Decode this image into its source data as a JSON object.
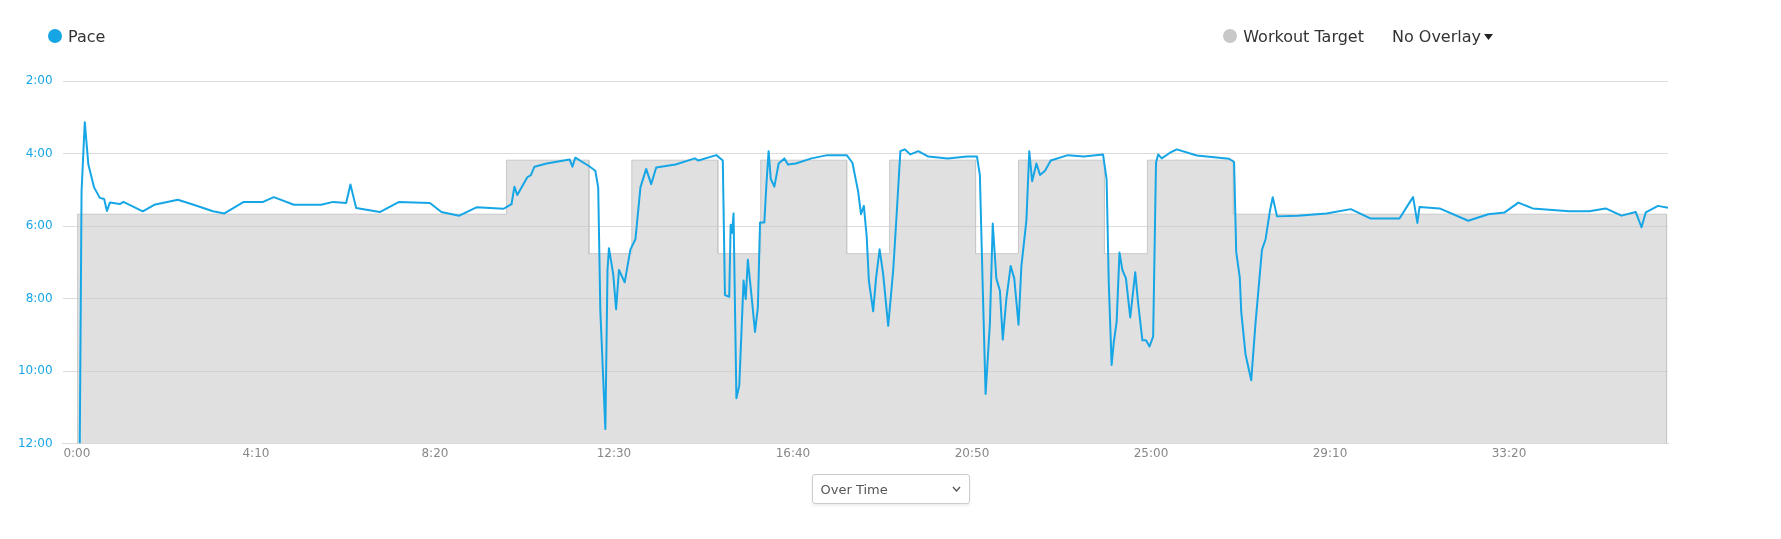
{
  "chart_data": {
    "type": "line",
    "legend": "top",
    "grid": "y",
    "marker": "none",
    "line_style": "solid",
    "xlim": [
      -20,
      2222
    ],
    "ylim": [
      12,
      2
    ],
    "xticks": [
      {
        "value": 0,
        "label": "0:00"
      },
      {
        "value": 250,
        "label": "4:10"
      },
      {
        "value": 500,
        "label": "8:20"
      },
      {
        "value": 750,
        "label": "12:30"
      },
      {
        "value": 1000,
        "label": "16:40"
      },
      {
        "value": 1250,
        "label": "20:50"
      },
      {
        "value": 1500,
        "label": "25:00"
      },
      {
        "value": 1750,
        "label": "29:10"
      },
      {
        "value": 2000,
        "label": "33:20"
      }
    ],
    "yticks": [
      {
        "value": 2,
        "label": "2:00"
      },
      {
        "value": 4,
        "label": "4:00"
      },
      {
        "value": 6,
        "label": "6:00"
      },
      {
        "value": 8,
        "label": "8:00"
      },
      {
        "value": 10,
        "label": "10:00"
      },
      {
        "value": 12,
        "label": "12:00"
      }
    ],
    "annotations": [
      "No Overlay",
      "Over Time"
    ],
    "series": [
      {
        "name": "Pace",
        "color": "#16a6e6",
        "x": [
          4,
          6.5,
          11,
          16,
          24,
          32,
          38,
          42,
          46,
          60,
          65,
          92,
          108,
          141,
          163,
          190,
          206,
          233,
          260,
          275,
          303,
          341,
          358,
          376,
          382,
          390,
          423,
          450,
          493,
          509,
          534,
          558,
          596,
          607,
          611,
          615,
          629,
          634,
          639,
          656,
          688,
          692,
          696,
          715,
          724,
          728,
          731,
          738,
          741,
          743,
          749,
          753,
          757,
          765,
          773,
          780,
          787,
          795,
          802,
          809,
          836,
          863,
          868,
          893,
          902,
          905,
          911,
          913,
          915,
          917,
          921,
          925,
          931,
          934,
          937,
          942,
          947,
          951,
          954,
          960,
          963,
          966,
          969,
          974,
          980,
          988,
          993,
          1004,
          1026,
          1048,
          1075,
          1083,
          1091,
          1095,
          1099,
          1103,
          1106,
          1112,
          1116,
          1121,
          1126,
          1133,
          1140,
          1145,
          1150,
          1156,
          1164,
          1175,
          1189,
          1216,
          1243,
          1257,
          1261,
          1265,
          1269,
          1275,
          1279,
          1284,
          1289,
          1293,
          1298,
          1304,
          1309,
          1315,
          1319,
          1326,
          1330,
          1334,
          1340,
          1345,
          1352,
          1360,
          1384,
          1406,
          1433,
          1438,
          1441,
          1445,
          1448,
          1452,
          1456,
          1460,
          1465,
          1471,
          1478,
          1482,
          1488,
          1493,
          1498,
          1503,
          1507,
          1510,
          1515,
          1526,
          1536,
          1564,
          1609,
          1616,
          1619,
          1624,
          1626,
          1632,
          1640,
          1646,
          1655,
          1660,
          1666,
          1670,
          1676,
          1705,
          1745,
          1779,
          1807,
          1847,
          1861,
          1866,
          1872,
          1875,
          1903,
          1943,
          1971,
          1994,
          2013,
          2033,
          2056,
          2084,
          2112,
          2135,
          2157,
          2177,
          2185,
          2191,
          2208,
          2222
        ],
        "values": [
          12,
          5.04,
          3.13,
          4.3,
          4.93,
          5.22,
          5.25,
          5.58,
          5.35,
          5.39,
          5.33,
          5.59,
          5.41,
          5.27,
          5.41,
          5.59,
          5.65,
          5.33,
          5.33,
          5.2,
          5.41,
          5.41,
          5.33,
          5.36,
          4.85,
          5.5,
          5.61,
          5.33,
          5.36,
          5.61,
          5.71,
          5.48,
          5.52,
          5.39,
          4.91,
          5.14,
          4.65,
          4.59,
          4.36,
          4.27,
          4.16,
          4.36,
          4.11,
          4.34,
          4.47,
          4.93,
          8.35,
          11.6,
          7.21,
          6.61,
          7.33,
          8.29,
          7.21,
          7.55,
          6.64,
          6.36,
          4.93,
          4.42,
          4.84,
          4.38,
          4.3,
          4.13,
          4.19,
          4.04,
          4.19,
          7.9,
          7.95,
          5.96,
          6.18,
          5.65,
          10.75,
          10.4,
          7.5,
          8.01,
          6.93,
          7.9,
          8.92,
          8.24,
          5.9,
          5.9,
          4.82,
          3.93,
          4.7,
          4.91,
          4.27,
          4.13,
          4.3,
          4.27,
          4.13,
          4.04,
          4.04,
          4.25,
          5.04,
          5.67,
          5.44,
          6.3,
          7.5,
          8.35,
          7.44,
          6.64,
          7.33,
          8.75,
          7.21,
          5.61,
          3.93,
          3.88,
          4.02,
          3.93,
          4.08,
          4.13,
          4.08,
          4.08,
          4.59,
          7.67,
          10.63,
          8.69,
          5.93,
          7.44,
          7.78,
          9.13,
          8.01,
          7.1,
          7.44,
          8.72,
          7.1,
          5.84,
          3.93,
          4.76,
          4.27,
          4.59,
          4.47,
          4.19,
          4.04,
          4.08,
          4.02,
          4.7,
          7.55,
          9.83,
          9.21,
          8.64,
          6.73,
          7.21,
          7.44,
          8.52,
          7.27,
          8.12,
          9.15,
          9.15,
          9.32,
          9.04,
          4.25,
          4.02,
          4.13,
          3.98,
          3.88,
          4.05,
          4.14,
          4.23,
          6.71,
          7.42,
          8.36,
          9.54,
          10.25,
          8.66,
          6.65,
          6.36,
          5.59,
          5.2,
          5.73,
          5.71,
          5.65,
          5.53,
          5.79,
          5.79,
          5.35,
          5.2,
          5.91,
          5.47,
          5.51,
          5.85,
          5.67,
          5.62,
          5.35,
          5.51,
          5.55,
          5.59,
          5.59,
          5.51,
          5.71,
          5.61,
          6.03,
          5.62,
          5.44,
          5.49
        ]
      },
      {
        "name": "Workout Target",
        "color": "#c8c8c8",
        "type": "area",
        "x": [
          1,
          1,
          600,
          600,
          715,
          715,
          775,
          775,
          895,
          895,
          955,
          955,
          1075,
          1075,
          1135,
          1135,
          1255,
          1255,
          1315,
          1315,
          1435,
          1435,
          1495,
          1495,
          1615,
          1615,
          2220,
          2220
        ],
        "values": [
          12,
          5.67,
          5.67,
          4.18,
          4.18,
          6.76,
          6.76,
          4.18,
          4.18,
          6.76,
          6.76,
          4.18,
          4.18,
          6.76,
          6.76,
          4.18,
          4.18,
          6.76,
          6.76,
          4.18,
          4.18,
          6.76,
          6.76,
          4.18,
          4.18,
          5.67,
          5.67,
          12
        ]
      }
    ]
  }
}
